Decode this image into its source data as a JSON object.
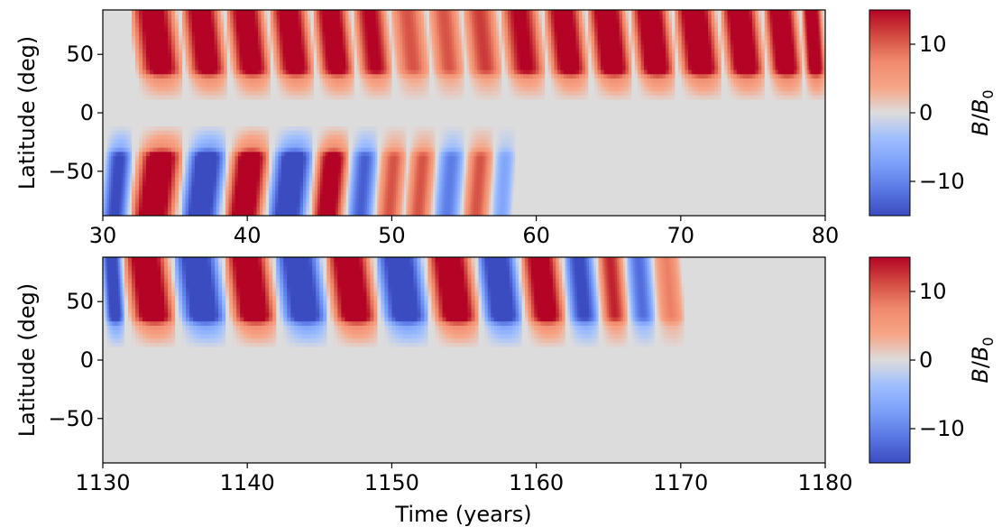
{
  "chart_data": [
    {
      "type": "heatmap",
      "panel": "top",
      "xlim": [
        30,
        80
      ],
      "ylim": [
        -88,
        88
      ],
      "x_ticks": [
        30,
        40,
        50,
        60,
        70,
        80
      ],
      "y_ticks": [
        50,
        0,
        -50
      ],
      "x_tick_labels": [
        "30",
        "40",
        "50",
        "60",
        "70",
        "80"
      ],
      "y_tick_labels": [
        "50",
        "0",
        "−50"
      ],
      "ylabel": "Latitude (deg)",
      "xlabel": "",
      "colormap": "coolwarm",
      "color_range": [
        -15,
        15
      ],
      "colorbar_ticks": [
        10,
        0,
        -10
      ],
      "colorbar_tick_labels": [
        "10",
        "0",
        "−10"
      ],
      "colorbar_label": "B/B0",
      "northern_hemisphere": {
        "latitude_band": [
          30,
          88
        ],
        "sign_reversals": [
          32,
          35.5,
          38.6,
          41.6,
          44.6,
          47.4,
          50,
          52.6,
          55,
          57.6,
          60.6,
          63.6,
          66.6,
          69.6,
          72.8,
          75.8,
          78.4,
          80
        ],
        "amplitudes": [
          14,
          14,
          14,
          14,
          14,
          12,
          8,
          8,
          9,
          12,
          14,
          15,
          15,
          15,
          15,
          15,
          15
        ],
        "first_polarity": 1
      },
      "southern_hemisphere": {
        "latitude_band": [
          -88,
          -30
        ],
        "sign_reversals": [
          30,
          32,
          35.5,
          38.5,
          41.5,
          44.5,
          47,
          49,
          51,
          53,
          55,
          57,
          58.5
        ],
        "amplitudes": [
          -12,
          15,
          -15,
          15,
          -15,
          14,
          -10,
          8,
          8,
          -8,
          8,
          -5
        ],
        "first_polarity": -1,
        "decays_to_zero_by": 59
      }
    },
    {
      "type": "heatmap",
      "panel": "bottom",
      "xlim": [
        1130,
        1180
      ],
      "ylim": [
        -88,
        88
      ],
      "x_ticks": [
        1130,
        1140,
        1150,
        1160,
        1170,
        1180
      ],
      "y_ticks": [
        50,
        0,
        -50
      ],
      "x_tick_labels": [
        "1130",
        "1140",
        "1150",
        "1160",
        "1170",
        "1180"
      ],
      "y_tick_labels": [
        "50",
        "0",
        "−50"
      ],
      "ylabel": "Latitude (deg)",
      "xlabel": "Time (years)",
      "colormap": "coolwarm",
      "color_range": [
        -15,
        15
      ],
      "colorbar_ticks": [
        10,
        0,
        -10
      ],
      "colorbar_tick_labels": [
        "10",
        "0",
        "−10"
      ],
      "colorbar_label": "B/B0",
      "northern_hemisphere": {
        "latitude_band": [
          30,
          88
        ],
        "sign_reversals": [
          1130,
          1131.5,
          1135,
          1138.5,
          1142,
          1145.5,
          1149,
          1152.5,
          1156,
          1159,
          1162,
          1164.3,
          1166.3,
          1168.2,
          1170.2
        ],
        "amplitudes": [
          -14,
          15,
          -15,
          15,
          -15,
          15,
          -15,
          15,
          -15,
          14,
          -12,
          10,
          -9,
          6,
          3
        ],
        "first_polarity": -1,
        "decays_to_zero_by": 1171
      },
      "southern_hemisphere": {
        "latitude_band": [
          -88,
          -30
        ],
        "sign_reversals": [],
        "amplitudes": [],
        "first_polarity": 0
      }
    }
  ],
  "colors": {
    "cmap_stops": [
      {
        "v": 0.0,
        "c": "#3b4cc0"
      },
      {
        "v": 0.125,
        "c": "#5977e3"
      },
      {
        "v": 0.25,
        "c": "#7b9ff9"
      },
      {
        "v": 0.375,
        "c": "#9ebeff"
      },
      {
        "v": 0.5,
        "c": "#dddcdc"
      },
      {
        "v": 0.625,
        "c": "#f6a586"
      },
      {
        "v": 0.75,
        "c": "#f08a6c"
      },
      {
        "v": 0.875,
        "c": "#d24b40"
      },
      {
        "v": 1.0,
        "c": "#b40426"
      }
    ],
    "background": "#dddcdc"
  }
}
